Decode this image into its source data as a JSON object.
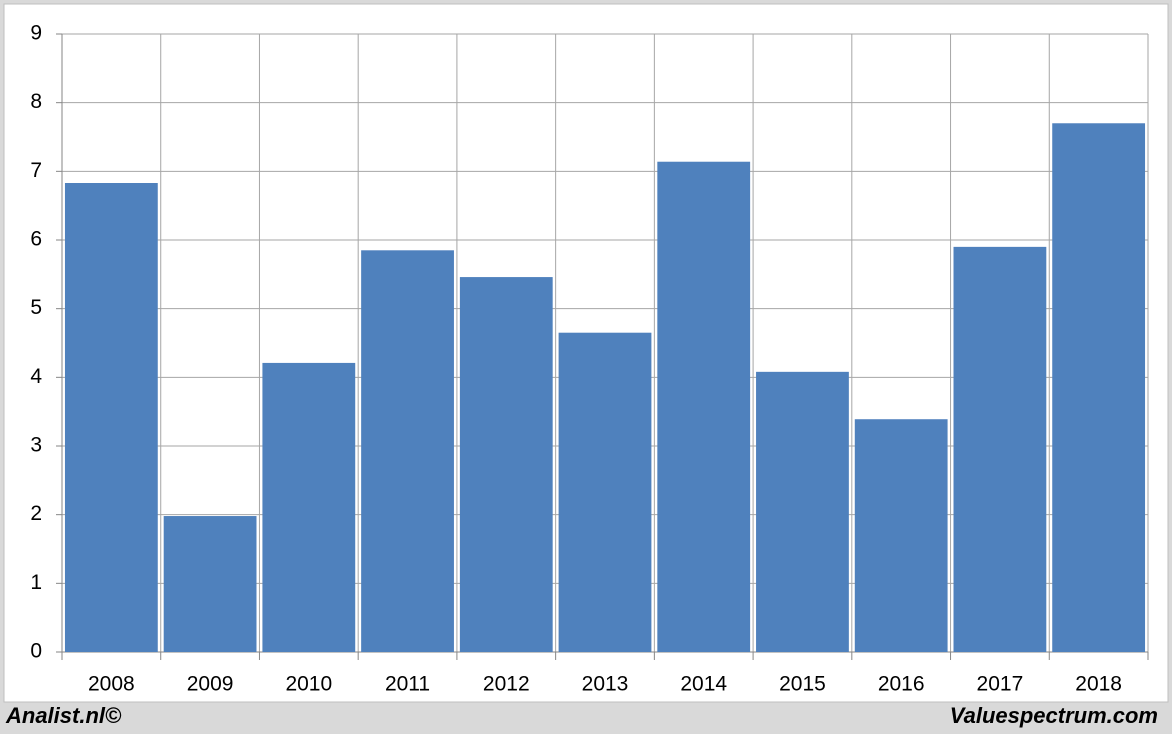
{
  "chart_data": {
    "type": "bar",
    "categories": [
      "2008",
      "2009",
      "2010",
      "2011",
      "2012",
      "2013",
      "2014",
      "2015",
      "2016",
      "2017",
      "2018"
    ],
    "values": [
      6.83,
      1.98,
      4.21,
      5.85,
      5.46,
      4.65,
      7.14,
      4.08,
      3.39,
      5.9,
      7.7
    ],
    "color": "#4f81bd",
    "ylim": [
      0,
      9
    ],
    "yticks": [
      0,
      1,
      2,
      3,
      4,
      5,
      6,
      7,
      8,
      9
    ],
    "grid": true,
    "annotations": [
      "Analist.nl©",
      "Valuespectrum.com"
    ]
  }
}
